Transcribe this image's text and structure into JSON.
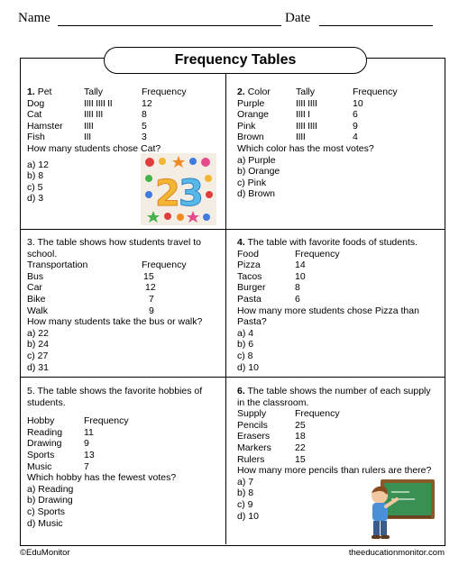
{
  "header": {
    "name_label": "Name",
    "date_label": "Date"
  },
  "title": "Frequency Tables",
  "q1": {
    "num": "1.",
    "col_item": "Pet",
    "col_tally": "Tally",
    "col_freq": "Frequency",
    "rows": [
      {
        "item": "Dog",
        "tally": "IIII IIII II",
        "freq": "12"
      },
      {
        "item": "Cat",
        "tally": "IIII III",
        "freq": "8"
      },
      {
        "item": "Hamster",
        "tally": "IIII",
        "freq": "5"
      },
      {
        "item": "Fish",
        "tally": "III",
        "freq": "3"
      }
    ],
    "question": "How many students chose Cat?",
    "options": [
      "a) 12",
      "b) 8",
      "c) 5",
      "d) 3"
    ]
  },
  "q2": {
    "num": "2.",
    "col_item": "Color",
    "col_tally": "Tally",
    "col_freq": "Frequency",
    "rows": [
      {
        "item": "Purple",
        "tally": "IIII IIII",
        "freq": "10"
      },
      {
        "item": "Orange",
        "tally": "IIII I",
        "freq": "6"
      },
      {
        "item": "Pink",
        "tally": "IIII IIII",
        "freq": "9"
      },
      {
        "item": "Brown",
        "tally": "IIII",
        "freq": "4"
      }
    ],
    "question": "Which color has the most votes?",
    "options": [
      "a) Purple",
      "b) Orange",
      "c) Pink",
      "d) Brown"
    ]
  },
  "q3": {
    "intro1": "3. The table shows how students travel to",
    "intro2": "school.",
    "col_item": "Transportation",
    "col_freq": "Frequency",
    "rows": [
      {
        "item": "Bus",
        "freq": "15"
      },
      {
        "item": "Car",
        "freq": "12"
      },
      {
        "item": "Bike",
        "freq": "7"
      },
      {
        "item": "Walk",
        "freq": "9"
      }
    ],
    "question": "How many students take the bus or walk?",
    "options": [
      "a) 22",
      "b) 24",
      "c) 27",
      "d) 31"
    ]
  },
  "q4": {
    "num": "4.",
    "intro": "The table with favorite foods of students.",
    "col_item": "Food",
    "col_freq": "Frequency",
    "rows": [
      {
        "item": "Pizza",
        "freq": "14"
      },
      {
        "item": "Tacos",
        "freq": "10"
      },
      {
        "item": "Burger",
        "freq": "8"
      },
      {
        "item": "Pasta",
        "freq": "6"
      }
    ],
    "question1": "How many more students chose Pizza than",
    "question2": "Pasta?",
    "options": [
      "a) 4",
      "b) 6",
      "c) 8",
      "d) 10"
    ]
  },
  "q5": {
    "intro1": "5. The table shows the favorite hobbies of",
    "intro2": "students.",
    "col_item": "Hobby",
    "col_freq": "Frequency",
    "rows": [
      {
        "item": "Reading",
        "freq": "11"
      },
      {
        "item": "Drawing",
        "freq": "9"
      },
      {
        "item": "Sports",
        "freq": "13"
      },
      {
        "item": "Music",
        "freq": "7"
      }
    ],
    "question": "Which hobby has the fewest votes?",
    "options": [
      "a) Reading",
      "b) Drawing",
      "c) Sports",
      "d) Music"
    ]
  },
  "q6": {
    "num": "6.",
    "intro1": "The table shows the number of each supply",
    "intro2": "in the classroom.",
    "col_item": "Supply",
    "col_freq": "Frequency",
    "rows": [
      {
        "item": "Pencils",
        "freq": "25"
      },
      {
        "item": "Erasers",
        "freq": "18"
      },
      {
        "item": "Markers",
        "freq": "22"
      },
      {
        "item": "Rulers",
        "freq": "15"
      }
    ],
    "question": "How many more pencils than rulers are there?",
    "options": [
      "a) 7",
      "b) 8",
      "c) 9",
      "d) 10"
    ]
  },
  "footer": {
    "left": "©EduMonitor",
    "right": "theeducationmonitor.com"
  },
  "images": {
    "numbers_image": "number-23-toy-photo",
    "classroom_image": "boy-at-chalkboard-illustration"
  },
  "colors": {
    "squiggle": "#d02020",
    "image_bg": "#f3ede4",
    "chalkboard": "#3a8f52"
  }
}
